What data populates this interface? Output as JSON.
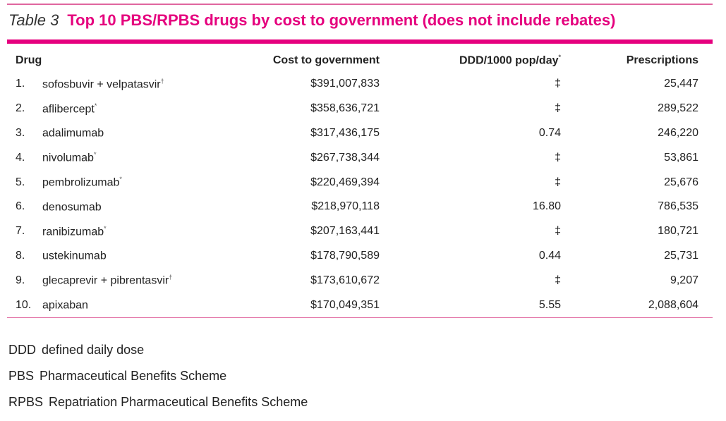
{
  "table": {
    "label": "Table 3",
    "title": "Top 10 PBS/RPBS drugs by cost to government (does not include rebates)",
    "headers": {
      "drug": "Drug",
      "cost": "Cost to government",
      "ddd": "DDD/1000 pop/day",
      "ddd_mark": "*",
      "prescriptions": "Prescriptions"
    },
    "rows": [
      {
        "num": "1.",
        "drug": "sofosbuvir + velpatasvir",
        "mark": "†",
        "cost": "$391,007,833",
        "ddd": "‡",
        "prescriptions": "25,447"
      },
      {
        "num": "2.",
        "drug": "aflibercept",
        "mark": "*",
        "cost": "$358,636,721",
        "ddd": "‡",
        "prescriptions": "289,522"
      },
      {
        "num": "3.",
        "drug": "adalimumab",
        "mark": "",
        "cost": "$317,436,175",
        "ddd": "0.74",
        "prescriptions": "246,220"
      },
      {
        "num": "4.",
        "drug": "nivolumab",
        "mark": "*",
        "cost": "$267,738,344",
        "ddd": "‡",
        "prescriptions": "53,861"
      },
      {
        "num": "5.",
        "drug": "pembrolizumab",
        "mark": "*",
        "cost": "$220,469,394",
        "ddd": "‡",
        "prescriptions": "25,676"
      },
      {
        "num": "6.",
        "drug": "denosumab",
        "mark": "",
        "cost": "$218,970,118",
        "ddd": "16.80",
        "prescriptions": "786,535"
      },
      {
        "num": "7.",
        "drug": "ranibizumab",
        "mark": "*",
        "cost": "$207,163,441",
        "ddd": "‡",
        "prescriptions": "180,721"
      },
      {
        "num": "8.",
        "drug": "ustekinumab",
        "mark": "",
        "cost": "$178,790,589",
        "ddd": "0.44",
        "prescriptions": "25,731"
      },
      {
        "num": "9.",
        "drug": "glecaprevir + pibrentasvir",
        "mark": "†",
        "cost": "$173,610,672",
        "ddd": "‡",
        "prescriptions": "9,207"
      },
      {
        "num": "10.",
        "drug": "apixaban",
        "mark": "",
        "cost": "$170,049,351",
        "ddd": "5.55",
        "prescriptions": "2,088,604"
      }
    ]
  },
  "notes": [
    {
      "abbr": "DDD",
      "text": "defined daily dose"
    },
    {
      "abbr": "PBS",
      "text": "Pharmaceutical Benefits Scheme"
    },
    {
      "abbr": "RPBS",
      "text": "Repatriation Pharmaceutical Benefits Scheme"
    }
  ],
  "colors": {
    "accent": "#e5007e"
  }
}
